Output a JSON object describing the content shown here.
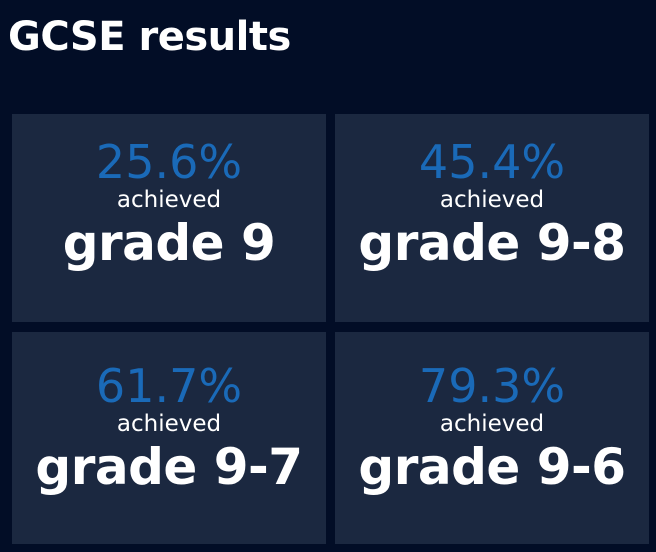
{
  "page": {
    "title": "GCSE results"
  },
  "stats": [
    {
      "percent": "25.6%",
      "caption": "achieved",
      "grade": "grade 9"
    },
    {
      "percent": "45.4%",
      "caption": "achieved",
      "grade": "grade 9-8"
    },
    {
      "percent": "61.7%",
      "caption": "achieved",
      "grade": "grade 9-7"
    },
    {
      "percent": "79.3%",
      "caption": "achieved",
      "grade": "grade 9-6"
    }
  ],
  "colors": {
    "background": "#020d26",
    "card": "#1b2840",
    "accent": "#1a6ab8",
    "text": "#ffffff"
  }
}
